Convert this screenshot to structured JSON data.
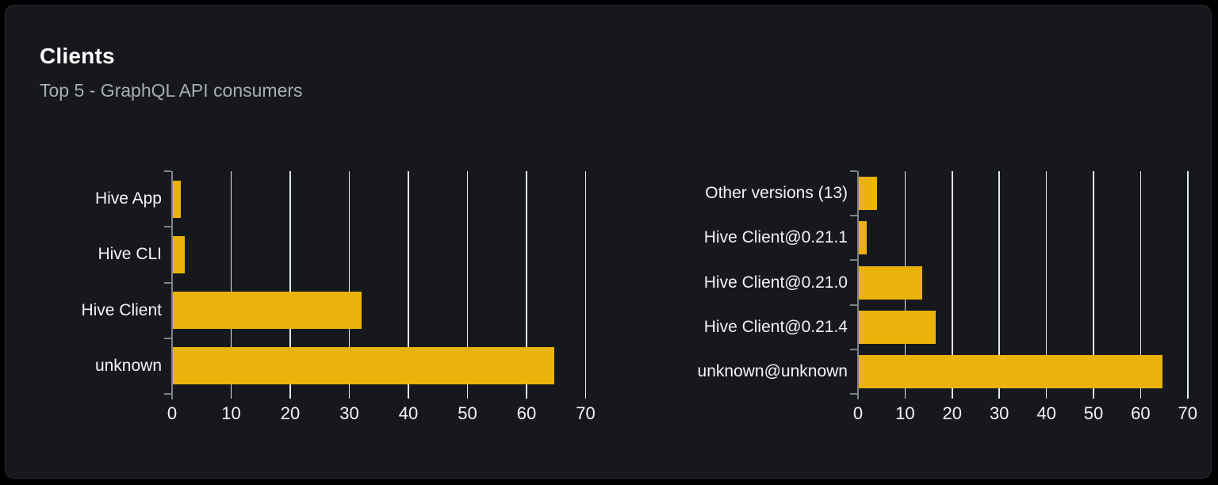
{
  "header": {
    "title": "Clients",
    "subtitle": "Top 5 - GraphQL API consumers"
  },
  "colors": {
    "page_bg": "#000000",
    "card_bg": "#16181d",
    "card_border": "#272a30",
    "bar": "#eab30b",
    "gridline": "#e3e8f0",
    "axis": "#7d828b",
    "title_text": "#ffffff",
    "subtitle_text": "#a9adb4",
    "label_text": "#f3f4f6"
  },
  "chart_data": [
    {
      "type": "bar",
      "orientation": "horizontal",
      "categories": [
        "Hive App",
        "Hive CLI",
        "Hive Client",
        "unknown"
      ],
      "values": [
        1.3,
        2,
        32,
        64.5
      ],
      "xlabel": "",
      "ylabel": "",
      "xlim": [
        0,
        70
      ],
      "xticks": [
        0,
        10,
        20,
        30,
        40,
        50,
        60,
        70
      ],
      "grid": true,
      "legend": false
    },
    {
      "type": "bar",
      "orientation": "horizontal",
      "categories": [
        "Other versions (13)",
        "Hive Client@0.21.1",
        "Hive Client@0.21.0",
        "Hive Client@0.21.4",
        "unknown@unknown"
      ],
      "values": [
        3.8,
        1.7,
        13.5,
        16.3,
        64.5
      ],
      "xlabel": "",
      "ylabel": "",
      "xlim": [
        0,
        70
      ],
      "xticks": [
        0,
        10,
        20,
        30,
        40,
        50,
        60,
        70
      ],
      "grid": true,
      "legend": false
    }
  ]
}
